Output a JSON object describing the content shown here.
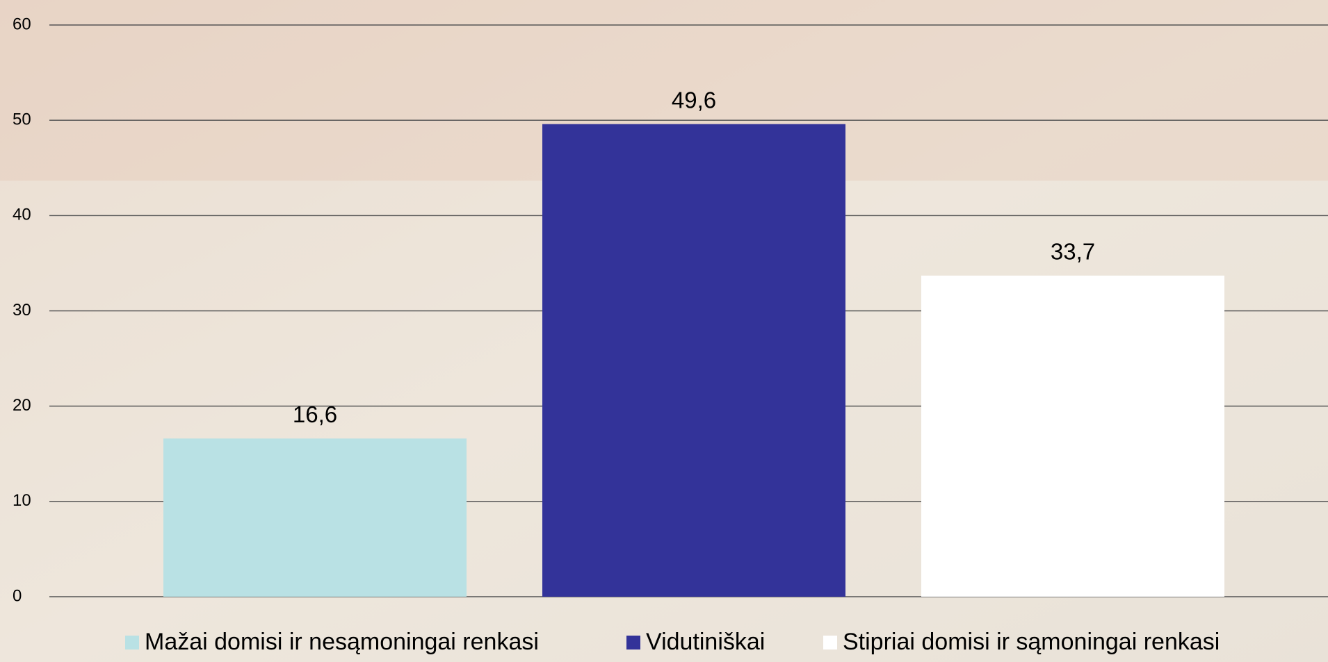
{
  "chart_data": {
    "type": "bar",
    "categories": [
      null
    ],
    "series": [
      {
        "name": "Mažai domisi ir nesąmoningai renkasi",
        "color": "#b9e1e4",
        "values": [
          16.6
        ],
        "value_labels": [
          "16,6"
        ]
      },
      {
        "name": "Vidutiniškai",
        "color": "#333399",
        "values": [
          49.6
        ],
        "value_labels": [
          "49,6"
        ]
      },
      {
        "name": "Stipriai domisi ir sąmoningai renkasi",
        "color": "#ffffff",
        "values": [
          33.7
        ],
        "value_labels": [
          "33,7"
        ]
      }
    ],
    "ylim": [
      0,
      60
    ],
    "yticks": [
      0,
      10,
      20,
      30,
      40,
      50,
      60
    ],
    "grid": true,
    "legend": "bottom"
  }
}
